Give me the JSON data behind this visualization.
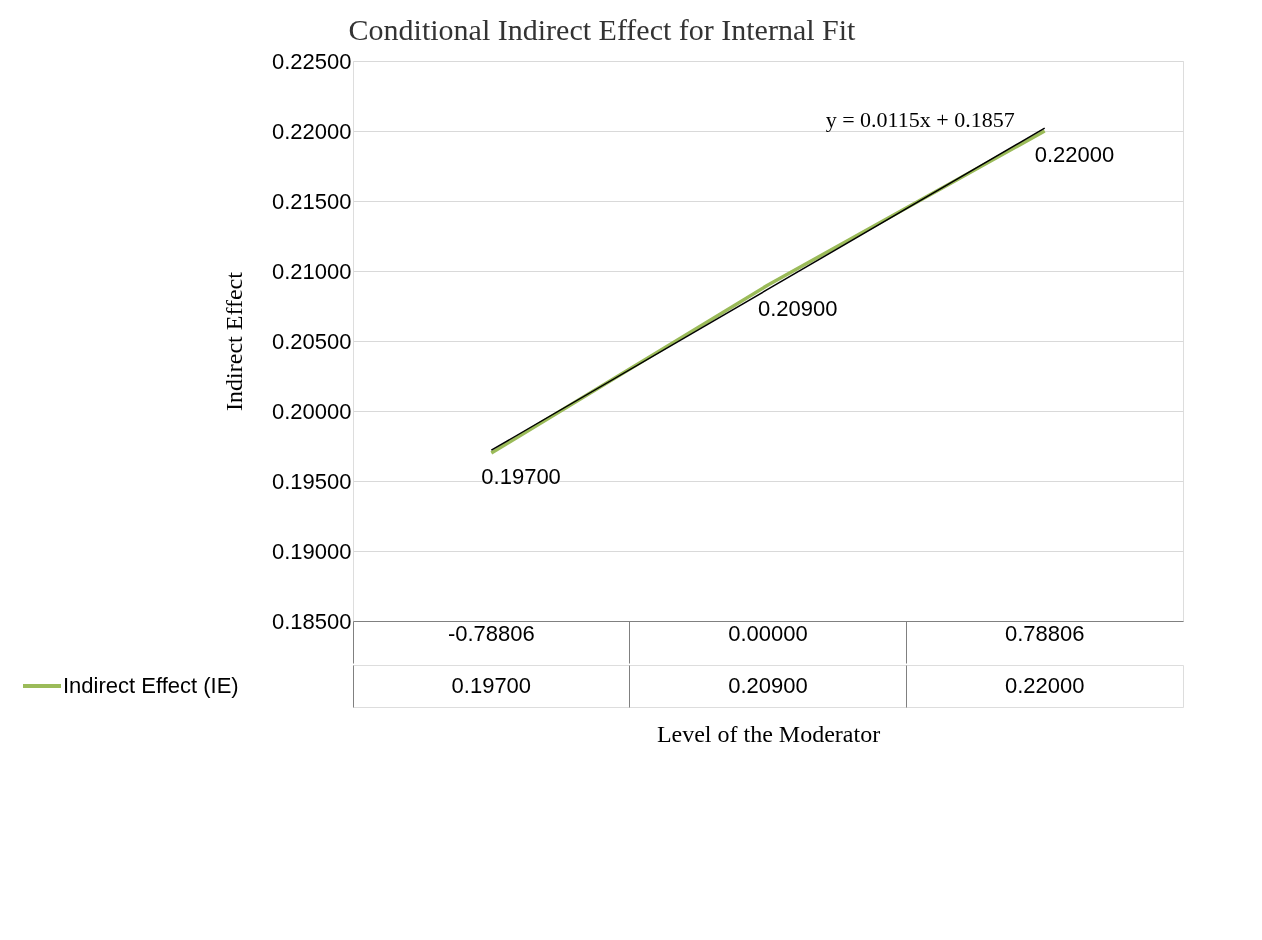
{
  "chart_data": {
    "type": "line",
    "title": "Conditional Indirect Effect for Internal Fit",
    "xlabel": "Level of the Moderator",
    "ylabel": "Indirect Effect",
    "categories": [
      "-0.78806",
      "0.00000",
      "0.78806"
    ],
    "series": [
      {
        "name": "Indirect Effect (IE)",
        "color": "#9bbb59",
        "values": [
          0.197,
          0.209,
          0.22
        ],
        "value_labels": [
          "0.19700",
          "0.20900",
          "0.22000"
        ]
      },
      {
        "type": "line",
        "color": "#000000",
        "x": [
          "-0.78806",
          "0.00000",
          "0.78806"
        ],
        "values": [
          0.1972,
          0.2087,
          0.2202
        ]
      }
    ],
    "ylim": [
      0.185,
      0.225
    ],
    "yticks": [
      {
        "value": 0.185,
        "label": "0.18500"
      },
      {
        "value": 0.19,
        "label": "0.19000"
      },
      {
        "value": 0.195,
        "label": "0.19500"
      },
      {
        "value": 0.2,
        "label": "0.20000"
      },
      {
        "value": 0.205,
        "label": "0.20500"
      },
      {
        "value": 0.21,
        "label": "0.21000"
      },
      {
        "value": 0.215,
        "label": "0.21500"
      },
      {
        "value": 0.22,
        "label": "0.22000"
      },
      {
        "value": 0.225,
        "label": "0.22500"
      }
    ],
    "grid": "y",
    "legend": "bottom",
    "marker": "none",
    "annotations": [
      {
        "text": "y = 0.0115x + 0.1857",
        "x": "0.78806",
        "y": 0.2202
      }
    ]
  }
}
